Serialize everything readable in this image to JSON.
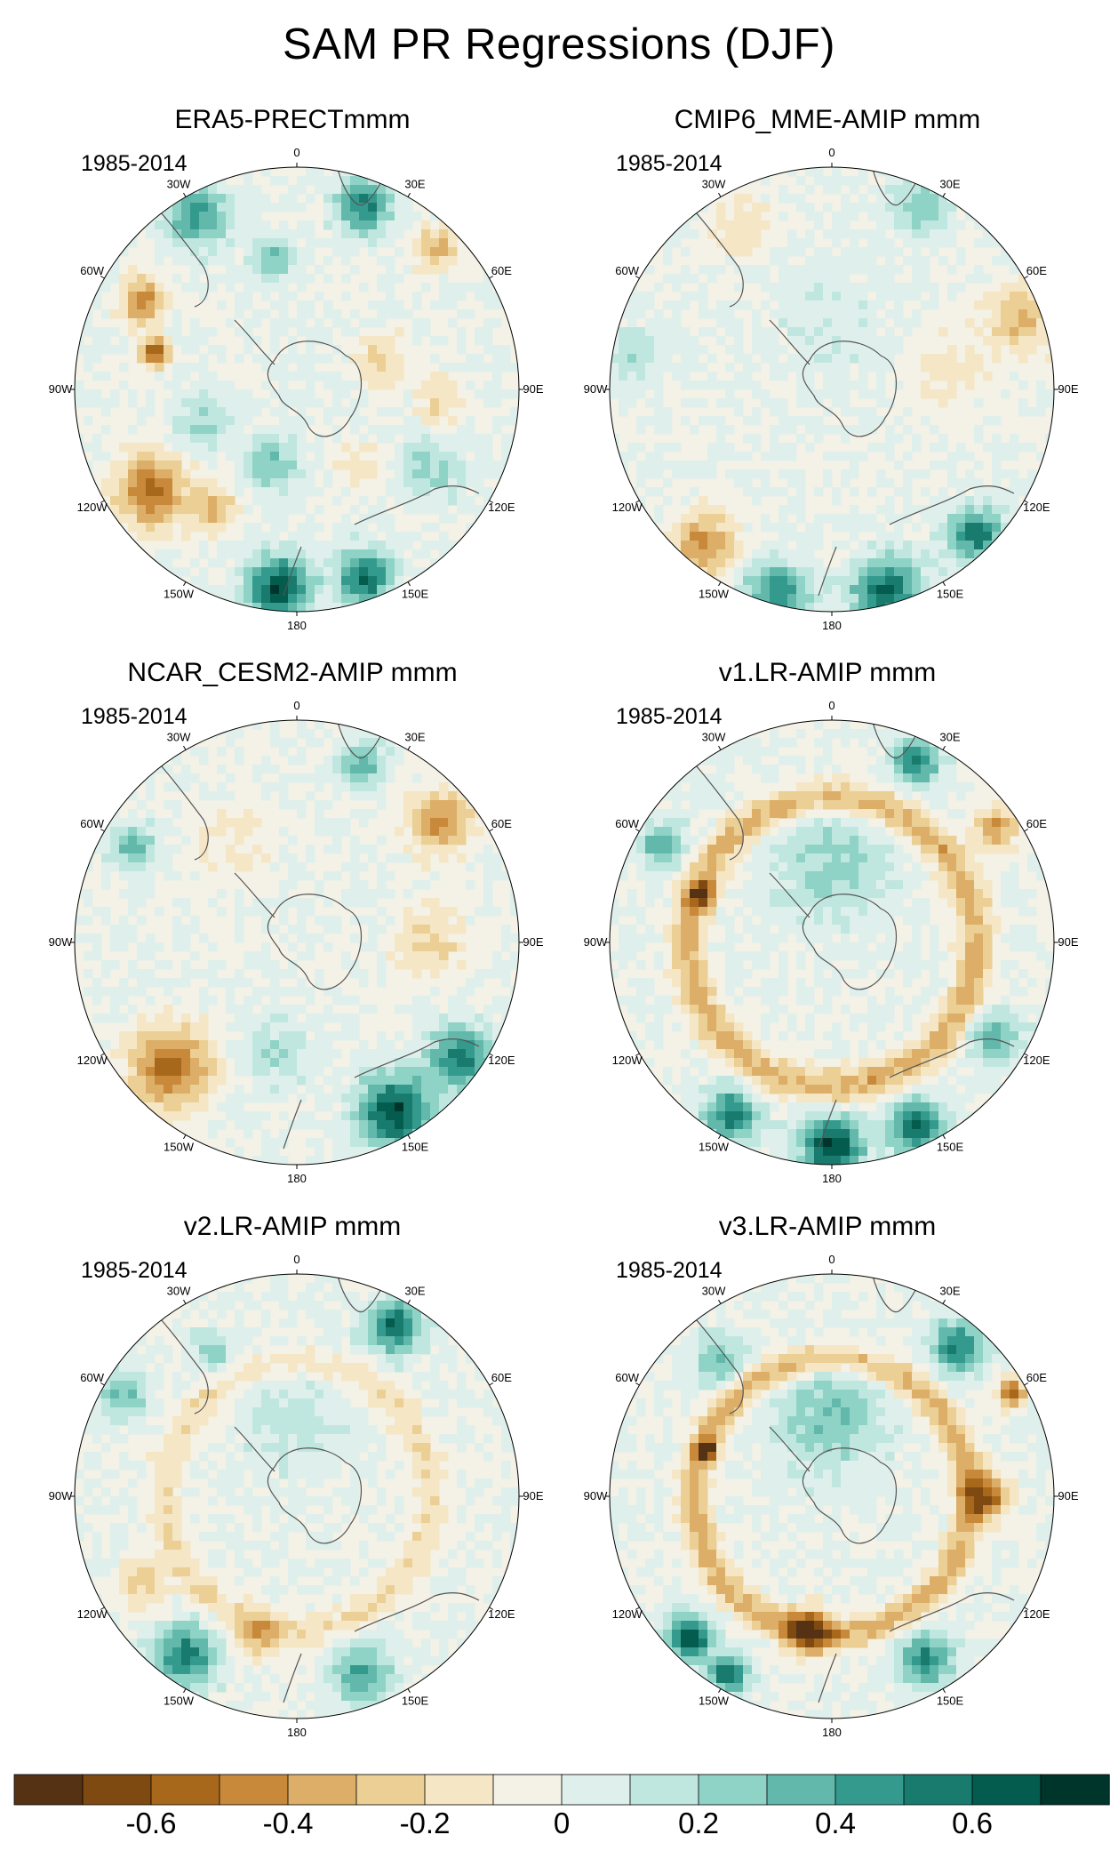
{
  "title": "SAM PR Regressions (DJF)",
  "chart_data": {
    "type": "heatmap",
    "title": "SAM PR Regressions (DJF)",
    "projection": "south-polar-stereographic",
    "period": "1985-2014",
    "longitude_labels": [
      "0",
      "30E",
      "60E",
      "90E",
      "120E",
      "150E",
      "180",
      "150W",
      "120W",
      "90W",
      "60W",
      "30W"
    ],
    "colorbar": {
      "levels": [
        -0.7,
        -0.6,
        -0.5,
        -0.4,
        -0.3,
        -0.2,
        -0.1,
        0,
        0.1,
        0.2,
        0.3,
        0.4,
        0.5,
        0.6,
        0.7
      ],
      "tick_labels": [
        "-0.6",
        "-0.4",
        "-0.2",
        "0",
        "0.2",
        "0.4",
        "0.6"
      ],
      "tick_values": [
        -0.6,
        -0.4,
        -0.2,
        0,
        0.2,
        0.4,
        0.6
      ],
      "colors": [
        "#553214",
        "#7f4a12",
        "#a8681c",
        "#c8893a",
        "#dcae68",
        "#ebcf95",
        "#f5e6c6",
        "#f4f1e6",
        "#dff0ec",
        "#c0e7df",
        "#8fd3c6",
        "#62b9ab",
        "#349a8d",
        "#197b6e",
        "#045c4e",
        "#00352b"
      ]
    },
    "panels": [
      {
        "title": "ERA5-PRECTmmm",
        "period": "1985-2014",
        "features": [
          {
            "lon": 300,
            "r": 0.8,
            "v": -0.5,
            "s": 0.1
          },
          {
            "lon": 285,
            "r": 0.66,
            "v": -0.65,
            "s": 0.06
          },
          {
            "lon": 330,
            "r": 0.9,
            "v": 0.45,
            "s": 0.14
          },
          {
            "lon": 20,
            "r": 0.88,
            "v": 0.55,
            "s": 0.12
          },
          {
            "lon": 45,
            "r": 0.9,
            "v": -0.35,
            "s": 0.1
          },
          {
            "lon": 235,
            "r": 0.8,
            "v": -0.55,
            "s": 0.16
          },
          {
            "lon": 215,
            "r": 0.65,
            "v": -0.3,
            "s": 0.1
          },
          {
            "lon": 185,
            "r": 0.9,
            "v": 0.7,
            "s": 0.14
          },
          {
            "lon": 160,
            "r": 0.9,
            "v": 0.6,
            "s": 0.12
          },
          {
            "lon": 250,
            "r": 0.45,
            "v": 0.25,
            "s": 0.12
          },
          {
            "lon": 70,
            "r": 0.4,
            "v": -0.25,
            "s": 0.12
          },
          {
            "lon": 120,
            "r": 0.7,
            "v": 0.25,
            "s": 0.14
          },
          {
            "lon": 95,
            "r": 0.65,
            "v": -0.2,
            "s": 0.12
          },
          {
            "lon": 350,
            "r": 0.6,
            "v": 0.3,
            "s": 0.1
          },
          {
            "lon": 200,
            "r": 0.35,
            "v": 0.3,
            "s": 0.12
          },
          {
            "lon": 140,
            "r": 0.45,
            "v": -0.15,
            "s": 0.12
          }
        ]
      },
      {
        "title": "CMIP6_MME-AMIP  mmm",
        "period": "1985-2014",
        "features": [
          {
            "lon": 70,
            "r": 0.92,
            "v": -0.3,
            "s": 0.16
          },
          {
            "lon": 220,
            "r": 0.9,
            "v": -0.45,
            "s": 0.14
          },
          {
            "lon": 165,
            "r": 0.95,
            "v": 0.6,
            "s": 0.16
          },
          {
            "lon": 195,
            "r": 0.95,
            "v": 0.5,
            "s": 0.14
          },
          {
            "lon": 135,
            "r": 0.92,
            "v": 0.55,
            "s": 0.12
          },
          {
            "lon": 25,
            "r": 0.92,
            "v": 0.3,
            "s": 0.12
          },
          {
            "lon": 330,
            "r": 0.85,
            "v": -0.15,
            "s": 0.16
          },
          {
            "lon": 80,
            "r": 0.55,
            "v": -0.15,
            "s": 0.2
          },
          {
            "lon": 280,
            "r": 0.9,
            "v": 0.2,
            "s": 0.12
          },
          {
            "lon": 0,
            "r": 0.3,
            "v": 0.1,
            "s": 0.25
          }
        ]
      },
      {
        "title": "NCAR_CESM2-AMIP  mmm",
        "period": "1985-2014",
        "features": [
          {
            "lon": 50,
            "r": 0.85,
            "v": -0.45,
            "s": 0.14
          },
          {
            "lon": 225,
            "r": 0.8,
            "v": -0.55,
            "s": 0.18
          },
          {
            "lon": 150,
            "r": 0.88,
            "v": 0.7,
            "s": 0.16
          },
          {
            "lon": 125,
            "r": 0.9,
            "v": 0.55,
            "s": 0.14
          },
          {
            "lon": 20,
            "r": 0.85,
            "v": 0.4,
            "s": 0.1
          },
          {
            "lon": 300,
            "r": 0.85,
            "v": 0.35,
            "s": 0.1
          },
          {
            "lon": 90,
            "r": 0.6,
            "v": -0.2,
            "s": 0.18
          },
          {
            "lon": 190,
            "r": 0.5,
            "v": 0.2,
            "s": 0.14
          },
          {
            "lon": 330,
            "r": 0.55,
            "v": -0.1,
            "s": 0.2
          }
        ]
      },
      {
        "title": "v1.LR-AMIP  mmm",
        "period": "1985-2014",
        "ring": {
          "r": 0.65,
          "v": -0.35,
          "s": 0.08
        },
        "features": [
          {
            "lon": 180,
            "r": 0.92,
            "v": 0.7,
            "s": 0.14
          },
          {
            "lon": 155,
            "r": 0.92,
            "v": 0.6,
            "s": 0.12
          },
          {
            "lon": 210,
            "r": 0.9,
            "v": 0.55,
            "s": 0.12
          },
          {
            "lon": 25,
            "r": 0.9,
            "v": 0.55,
            "s": 0.1
          },
          {
            "lon": 55,
            "r": 0.9,
            "v": -0.4,
            "s": 0.1
          },
          {
            "lon": 290,
            "r": 0.62,
            "v": -0.55,
            "s": 0.06
          },
          {
            "lon": 300,
            "r": 0.88,
            "v": 0.4,
            "s": 0.1
          },
          {
            "lon": 0,
            "r": 0.35,
            "v": 0.25,
            "s": 0.25
          },
          {
            "lon": 120,
            "r": 0.85,
            "v": 0.35,
            "s": 0.12
          }
        ]
      },
      {
        "title": "v2.LR-AMIP  mmm",
        "period": "1985-2014",
        "ring": {
          "r": 0.6,
          "v": -0.18,
          "s": 0.08
        },
        "features": [
          {
            "lon": 30,
            "r": 0.88,
            "v": 0.6,
            "s": 0.12
          },
          {
            "lon": 215,
            "r": 0.88,
            "v": 0.55,
            "s": 0.14
          },
          {
            "lon": 160,
            "r": 0.85,
            "v": 0.4,
            "s": 0.14
          },
          {
            "lon": 195,
            "r": 0.65,
            "v": -0.3,
            "s": 0.1
          },
          {
            "lon": 300,
            "r": 0.9,
            "v": 0.35,
            "s": 0.1
          },
          {
            "lon": 240,
            "r": 0.8,
            "v": -0.25,
            "s": 0.12
          },
          {
            "lon": 0,
            "r": 0.35,
            "v": 0.15,
            "s": 0.25
          },
          {
            "lon": 330,
            "r": 0.75,
            "v": 0.25,
            "s": 0.1
          }
        ]
      },
      {
        "title": "v3.LR-AMIP  mmm",
        "period": "1985-2014",
        "ring": {
          "r": 0.62,
          "v": -0.35,
          "s": 0.07
        },
        "features": [
          {
            "lon": 90,
            "r": 0.7,
            "v": -0.55,
            "s": 0.1
          },
          {
            "lon": 190,
            "r": 0.62,
            "v": -0.55,
            "s": 0.1
          },
          {
            "lon": 225,
            "r": 0.9,
            "v": 0.7,
            "s": 0.1
          },
          {
            "lon": 210,
            "r": 0.92,
            "v": 0.65,
            "s": 0.08
          },
          {
            "lon": 40,
            "r": 0.88,
            "v": 0.55,
            "s": 0.12
          },
          {
            "lon": 60,
            "r": 0.93,
            "v": -0.6,
            "s": 0.06
          },
          {
            "lon": 150,
            "r": 0.85,
            "v": 0.5,
            "s": 0.12
          },
          {
            "lon": 290,
            "r": 0.6,
            "v": -0.6,
            "s": 0.05
          },
          {
            "lon": 0,
            "r": 0.35,
            "v": 0.3,
            "s": 0.25
          },
          {
            "lon": 320,
            "r": 0.8,
            "v": 0.3,
            "s": 0.12
          }
        ]
      }
    ]
  }
}
